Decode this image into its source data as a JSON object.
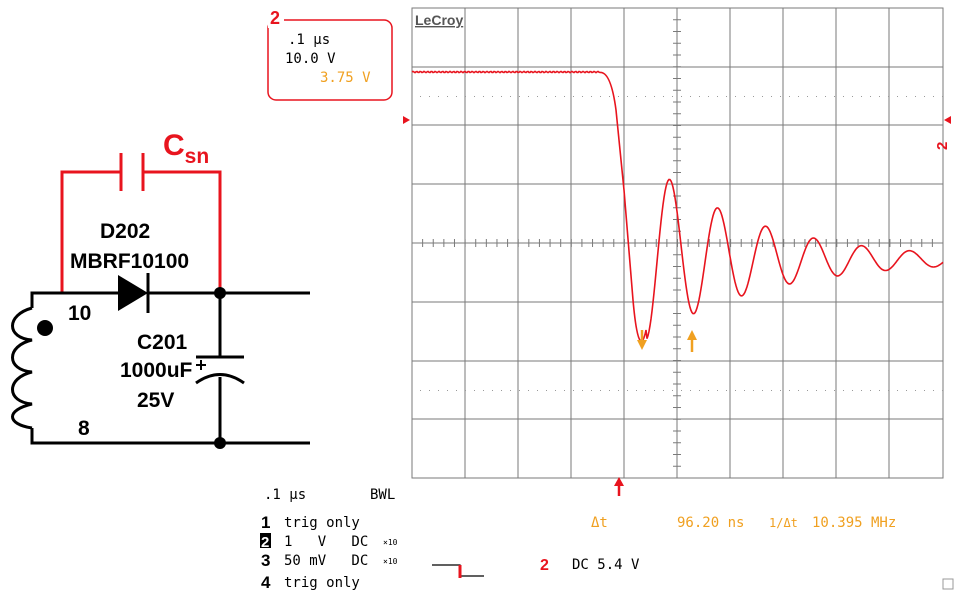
{
  "colors": {
    "trace": "#e8141e",
    "cursor": "#f0a020",
    "grid": "#7a7a7a",
    "text": "#000000",
    "snubber": "#e8141e"
  },
  "schematic": {
    "snubber_label": "C",
    "snubber_sub": "sn",
    "diode_ref": "D202",
    "diode_part": "MBRF10100",
    "cap_ref": "C201",
    "cap_value": "1000uF",
    "cap_voltage": "25V",
    "pin_top": "10",
    "pin_bottom": "8"
  },
  "scope": {
    "brand": "LeCroy",
    "channel_box": {
      "channel": "2",
      "timebase": ".1 µs",
      "volts_div": "10.0 V",
      "offset": "3.75 V"
    },
    "right_channel_marker": "2",
    "status": {
      "timebase": ".1 µs",
      "bwl": "BWL",
      "channels": [
        {
          "num": "1",
          "text": "trig only"
        },
        {
          "num": "2",
          "text": "1   V   DC",
          "coupling_mark": "×10"
        },
        {
          "num": "3",
          "text": "50 mV   DC",
          "coupling_mark": "×10"
        },
        {
          "num": "4",
          "text": "trig only"
        }
      ],
      "trigger_channel": "2",
      "trigger_text": "DC 5.4 V",
      "delta_label": "Δt",
      "delta_value": "96.20 ns",
      "freq_label": "1/Δt",
      "freq_value": "10.395 MHz"
    }
  }
}
